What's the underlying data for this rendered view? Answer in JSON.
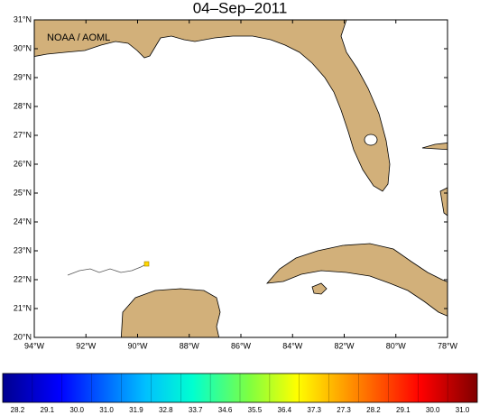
{
  "title": "04–Sep–2011",
  "credit": "NOAA / AOML",
  "lat_labels": [
    "31°N",
    "30°N",
    "29°N",
    "28°N",
    "27°N",
    "26°N",
    "25°N",
    "24°N",
    "23°N",
    "22°N",
    "21°N",
    "20°N"
  ],
  "lon_labels": [
    "94°W",
    "92°W",
    "90°W",
    "88°W",
    "86°W",
    "84°W",
    "82°W",
    "80°W",
    "78°W"
  ],
  "colorbar_labels": [
    "28.2",
    "29.1",
    "30.0",
    "31.0",
    "31.9",
    "32.8",
    "33.7",
    "34.6",
    "35.5",
    "36.4",
    "37.3",
    "27.3",
    "28.2",
    "29.1",
    "30.0",
    "31.0"
  ]
}
